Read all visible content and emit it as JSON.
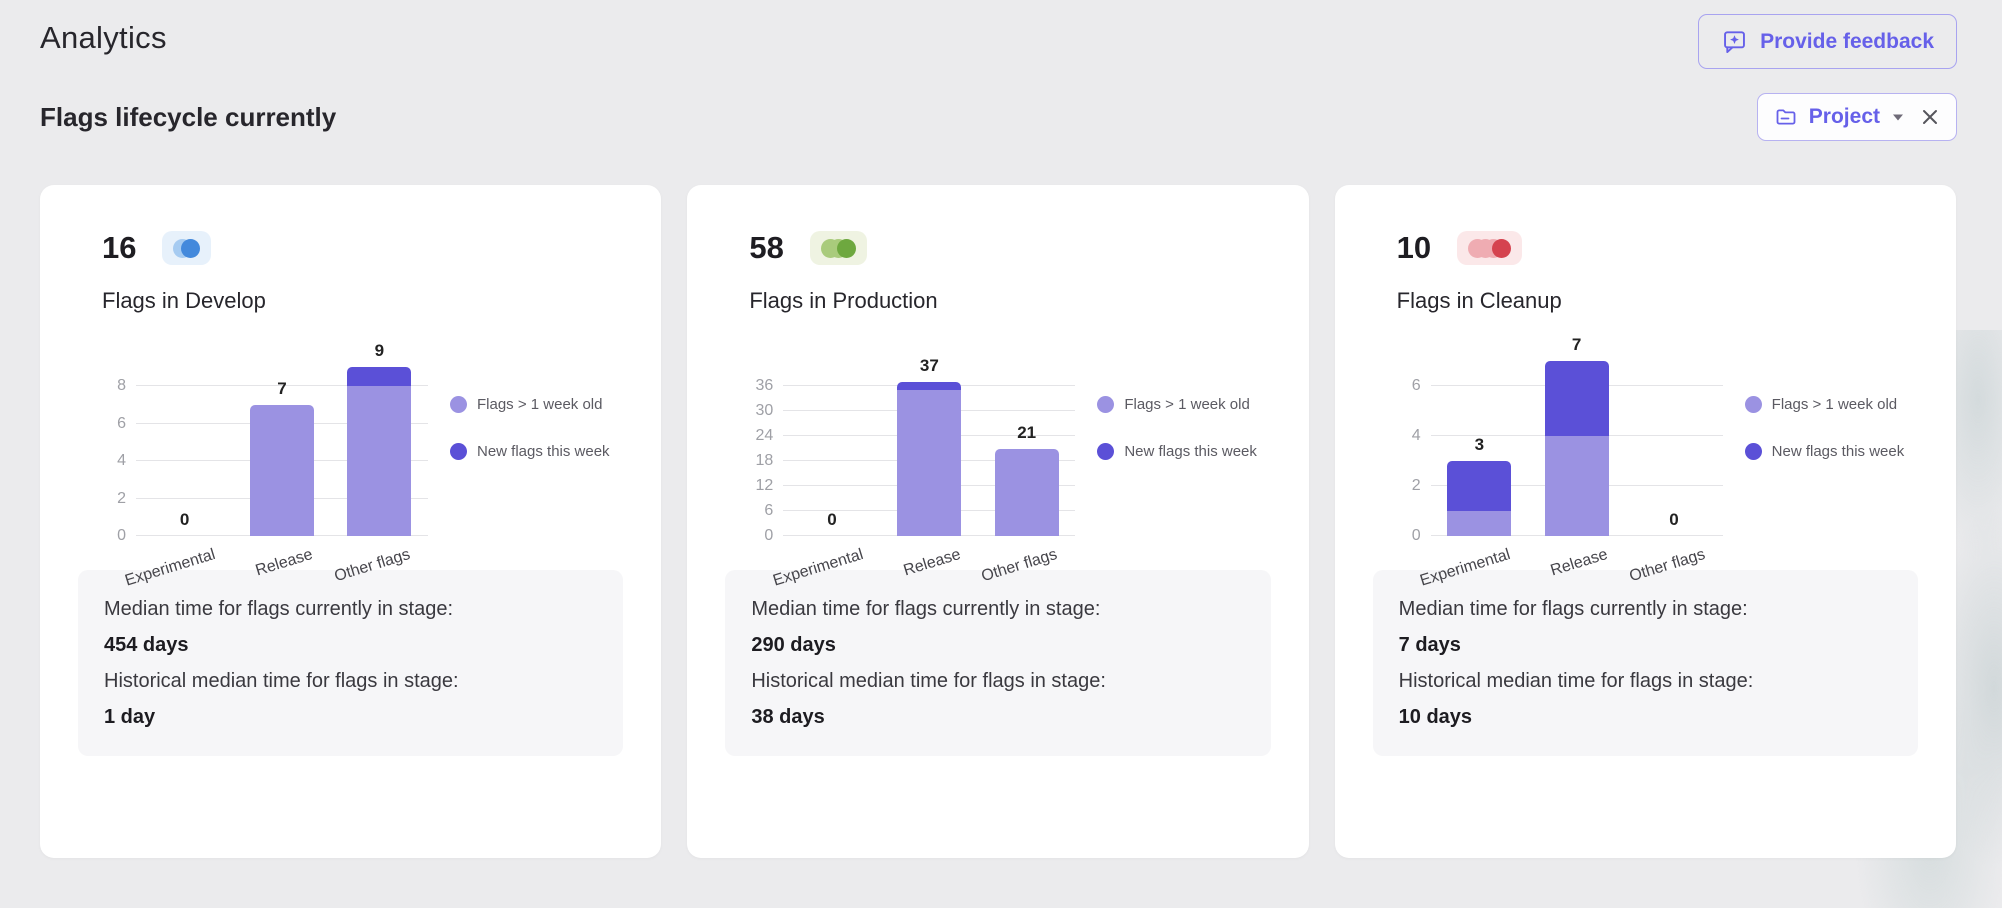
{
  "page": {
    "title": "Analytics",
    "section_title": "Flags lifecycle currently",
    "feedback_button": "Provide feedback",
    "project_filter": "Project"
  },
  "legend": {
    "old_label": "Flags > 1 week old",
    "new_label": "New flags this week"
  },
  "colors": {
    "accent": "#6660e9",
    "bar_old": "#9b92e2",
    "bar_new": "#5b50d7",
    "page_bg": "#ebebed"
  },
  "cards": [
    {
      "count": "16",
      "stage": "Flags in Develop",
      "badge": {
        "bg": "#e7f1fb",
        "circles": [
          "#a6cbf1",
          "#4389dc"
        ]
      },
      "stats": {
        "current_label": "Median time for flags currently in stage:",
        "current_value": "454 days",
        "historical_label": "Historical median time for flags in stage:",
        "historical_value": "1 day"
      }
    },
    {
      "count": "58",
      "stage": "Flags in Production",
      "badge": {
        "bg": "#eff3e2",
        "circles": [
          "#a9cb7c",
          "#a9cb7c",
          "#6ea83f"
        ]
      },
      "stats": {
        "current_label": "Median time for flags currently in stage:",
        "current_value": "290 days",
        "historical_label": "Historical median time for flags in stage:",
        "historical_value": "38 days"
      }
    },
    {
      "count": "10",
      "stage": "Flags in Cleanup",
      "badge": {
        "bg": "#fbe8e9",
        "circles": [
          "#efacb2",
          "#efacb2",
          "#efacb2",
          "#d5434f"
        ]
      },
      "stats": {
        "current_label": "Median time for flags currently in stage:",
        "current_value": "7 days",
        "historical_label": "Historical median time for flags in stage:",
        "historical_value": "10 days"
      }
    }
  ],
  "chart_data": [
    {
      "type": "bar",
      "stacked": true,
      "title": "Flags in Develop",
      "categories": [
        "Experimental",
        "Release",
        "Other flags"
      ],
      "series": [
        {
          "name": "Flags > 1 week old",
          "color": "#9b92e2",
          "values": [
            0,
            7,
            8
          ]
        },
        {
          "name": "New flags this week",
          "color": "#5b50d7",
          "values": [
            0,
            0,
            1
          ]
        }
      ],
      "totals": [
        0,
        7,
        9
      ],
      "yticks": [
        0,
        2,
        4,
        6,
        8
      ],
      "ylim": [
        0,
        9.6
      ],
      "grid": true,
      "legend_position": "right"
    },
    {
      "type": "bar",
      "stacked": true,
      "title": "Flags in Production",
      "categories": [
        "Experimental",
        "Release",
        "Other flags"
      ],
      "series": [
        {
          "name": "Flags > 1 week old",
          "color": "#9b92e2",
          "values": [
            0,
            35,
            21
          ]
        },
        {
          "name": "New flags this week",
          "color": "#5b50d7",
          "values": [
            0,
            2,
            0
          ]
        }
      ],
      "totals": [
        0,
        37,
        21
      ],
      "yticks": [
        0,
        6,
        12,
        18,
        24,
        30,
        36
      ],
      "ylim": [
        0,
        39
      ],
      "grid": true,
      "legend_position": "right"
    },
    {
      "type": "bar",
      "stacked": true,
      "title": "Flags in Cleanup",
      "categories": [
        "Experimental",
        "Release",
        "Other flags"
      ],
      "series": [
        {
          "name": "Flags > 1 week old",
          "color": "#9b92e2",
          "values": [
            1,
            4,
            0
          ]
        },
        {
          "name": "New flags this week",
          "color": "#5b50d7",
          "values": [
            2,
            3,
            0
          ]
        }
      ],
      "totals": [
        3,
        7,
        0
      ],
      "yticks": [
        0,
        2,
        4,
        6
      ],
      "ylim": [
        0,
        7.5
      ],
      "grid": true,
      "legend_position": "right"
    }
  ]
}
